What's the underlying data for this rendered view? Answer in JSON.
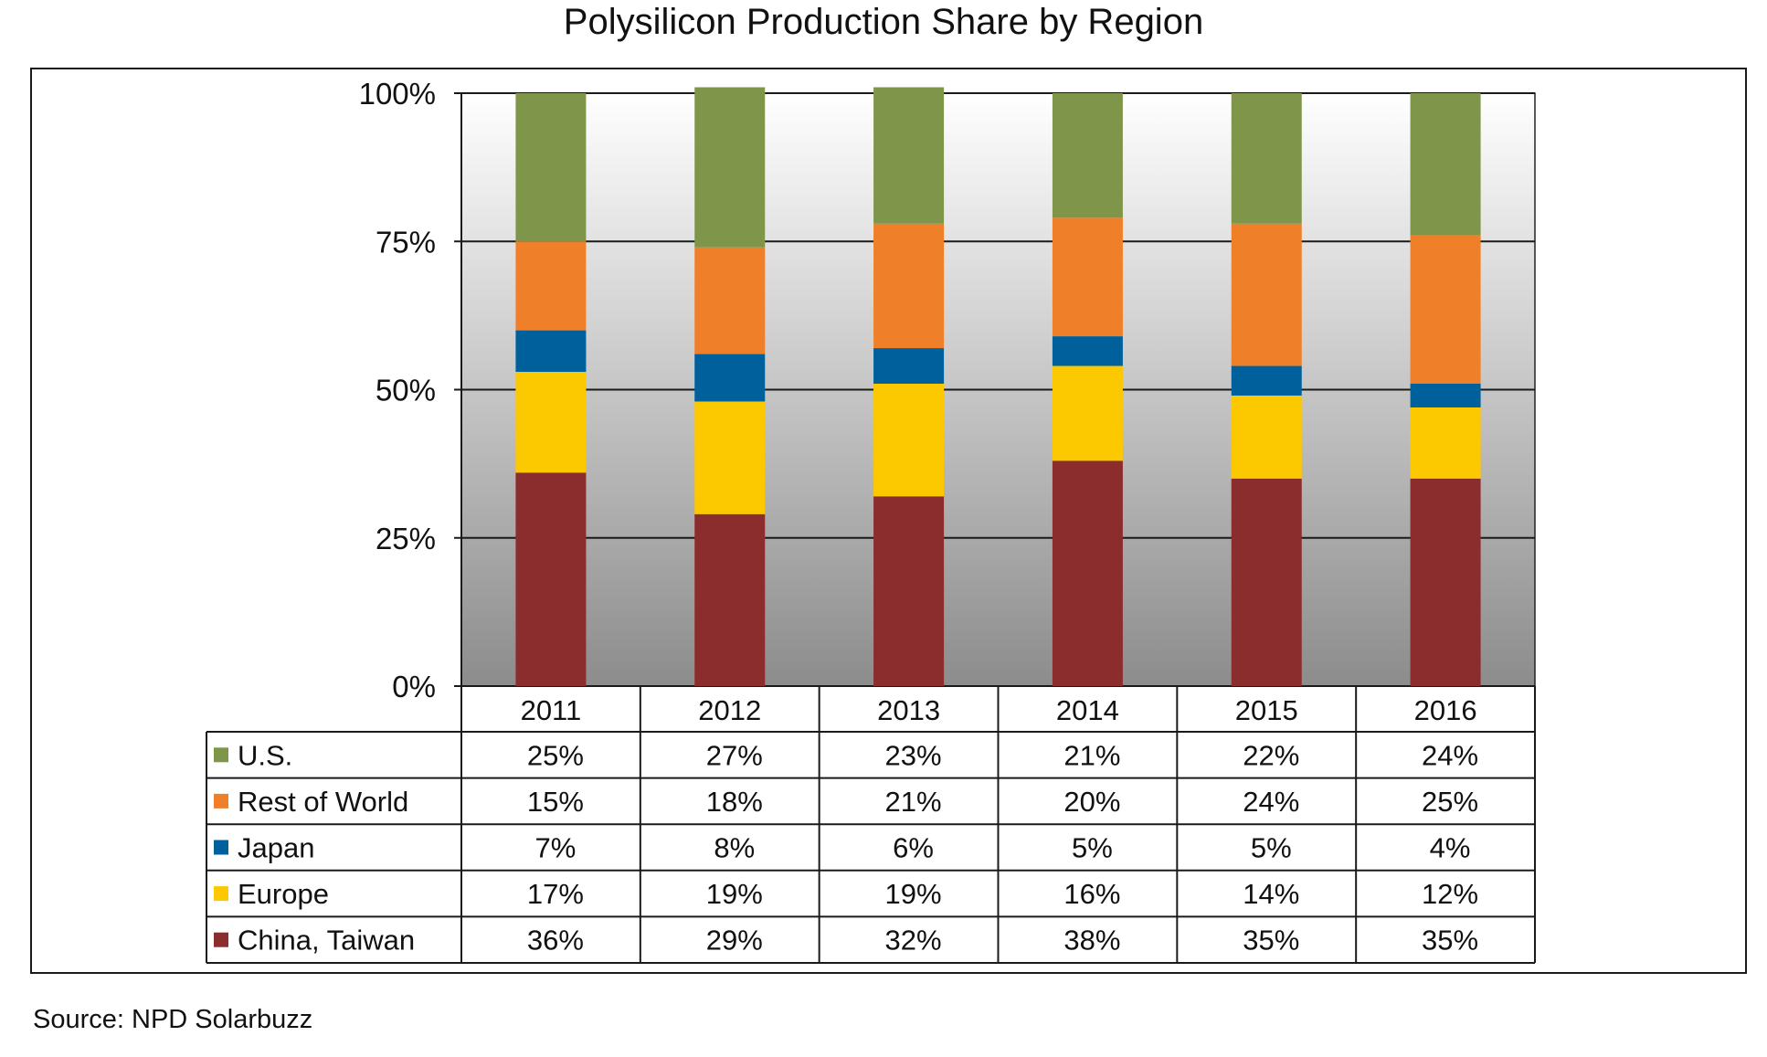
{
  "chart_data": {
    "type": "bar",
    "stacked": true,
    "title": "Polysilicon Production Share by Region",
    "categories": [
      "2011",
      "2012",
      "2013",
      "2014",
      "2015",
      "2016"
    ],
    "y_ticks": [
      "0%",
      "25%",
      "50%",
      "75%",
      "100%"
    ],
    "ylim": [
      0,
      100
    ],
    "grid": true,
    "legend_placement": "data-table-left",
    "series": [
      {
        "name": "China, Taiwan",
        "color": "#8b2d2d",
        "values": [
          36,
          29,
          32,
          38,
          35,
          35
        ],
        "labels": [
          "36%",
          "29%",
          "32%",
          "38%",
          "35%",
          "35%"
        ]
      },
      {
        "name": "Europe",
        "color": "#fcc800",
        "values": [
          17,
          19,
          19,
          16,
          14,
          12
        ],
        "labels": [
          "17%",
          "19%",
          "19%",
          "16%",
          "14%",
          "12%"
        ]
      },
      {
        "name": "Japan",
        "color": "#00609b",
        "values": [
          7,
          8,
          6,
          5,
          5,
          4
        ],
        "labels": [
          "7%",
          "8%",
          "6%",
          "5%",
          "5%",
          "4%"
        ]
      },
      {
        "name": "Rest of World",
        "color": "#f07f2a",
        "values": [
          15,
          18,
          21,
          20,
          24,
          25
        ],
        "labels": [
          "15%",
          "18%",
          "21%",
          "20%",
          "24%",
          "25%"
        ]
      },
      {
        "name": "U.S.",
        "color": "#7f964a",
        "values": [
          25,
          27,
          23,
          21,
          22,
          24
        ],
        "labels": [
          "25%",
          "27%",
          "23%",
          "21%",
          "22%",
          "24%"
        ]
      }
    ],
    "table_row_order": [
      "U.S.",
      "Rest of World",
      "Japan",
      "Europe",
      "China, Taiwan"
    ]
  },
  "source": "Source: NPD Solarbuzz"
}
